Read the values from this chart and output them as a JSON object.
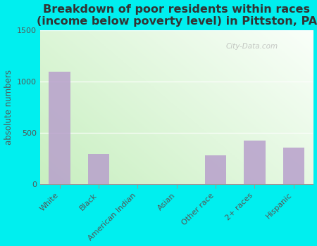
{
  "title": "Breakdown of poor residents within races\n(income below poverty level) in Pittston, PA",
  "categories": [
    "White",
    "Black",
    "American Indian",
    "Asian",
    "Other race",
    "2+ races",
    "Hispanic"
  ],
  "values": [
    1100,
    300,
    2,
    5,
    280,
    430,
    360
  ],
  "bar_color": "#b8a0cc",
  "ylabel": "absolute numbers",
  "ylim": [
    0,
    1500
  ],
  "yticks": [
    0,
    500,
    1000,
    1500
  ],
  "bg_topleft": "#c8efc0",
  "bg_bottomright": "#f5fff5",
  "outer_bg": "#00efef",
  "title_fontsize": 11.5,
  "label_fontsize": 8.5,
  "tick_fontsize": 8,
  "watermark": "City-Data.com"
}
